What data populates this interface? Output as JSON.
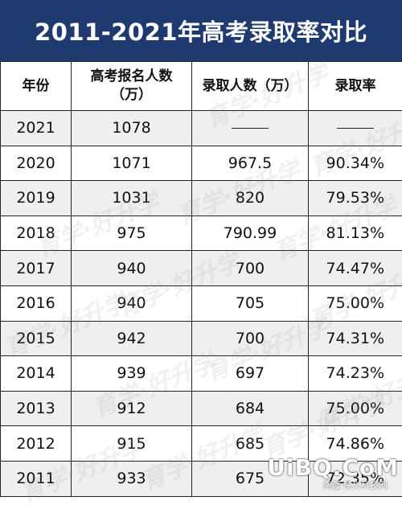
{
  "title": "2011-2021年高考录取率对比",
  "table": {
    "headers": {
      "year": "年份",
      "applicants": "高考报名人数\n（万）",
      "admitted": "录取人数（万）",
      "rate": "录取率"
    },
    "rows": [
      {
        "year": "2021",
        "applicants": "1078",
        "admitted": "——",
        "rate": "——"
      },
      {
        "year": "2020",
        "applicants": "1071",
        "admitted": "967.5",
        "rate": "90.34%"
      },
      {
        "year": "2019",
        "applicants": "1031",
        "admitted": "820",
        "rate": "79.53%"
      },
      {
        "year": "2018",
        "applicants": "975",
        "admitted": "790.99",
        "rate": "81.13%"
      },
      {
        "year": "2017",
        "applicants": "940",
        "admitted": "700",
        "rate": "74.47%"
      },
      {
        "year": "2016",
        "applicants": "940",
        "admitted": "705",
        "rate": "75.00%"
      },
      {
        "year": "2015",
        "applicants": "942",
        "admitted": "700",
        "rate": "74.31%"
      },
      {
        "year": "2014",
        "applicants": "939",
        "admitted": "697",
        "rate": "74.23%"
      },
      {
        "year": "2013",
        "applicants": "912",
        "admitted": "684",
        "rate": "75.00%"
      },
      {
        "year": "2012",
        "applicants": "915",
        "admitted": "685",
        "rate": "74.86%"
      },
      {
        "year": "2011",
        "applicants": "933",
        "admitted": "675",
        "rate": "72.35%"
      }
    ]
  },
  "watermark": "育学·好升学",
  "corner_logo": {
    "main": "UiBQ.CoM",
    "sub": "南疆·侠义科技网"
  },
  "colors": {
    "title_bg": "#1f3a6e",
    "title_text": "#ffffff",
    "row_stripe": "#efefef",
    "border": "#222222"
  }
}
